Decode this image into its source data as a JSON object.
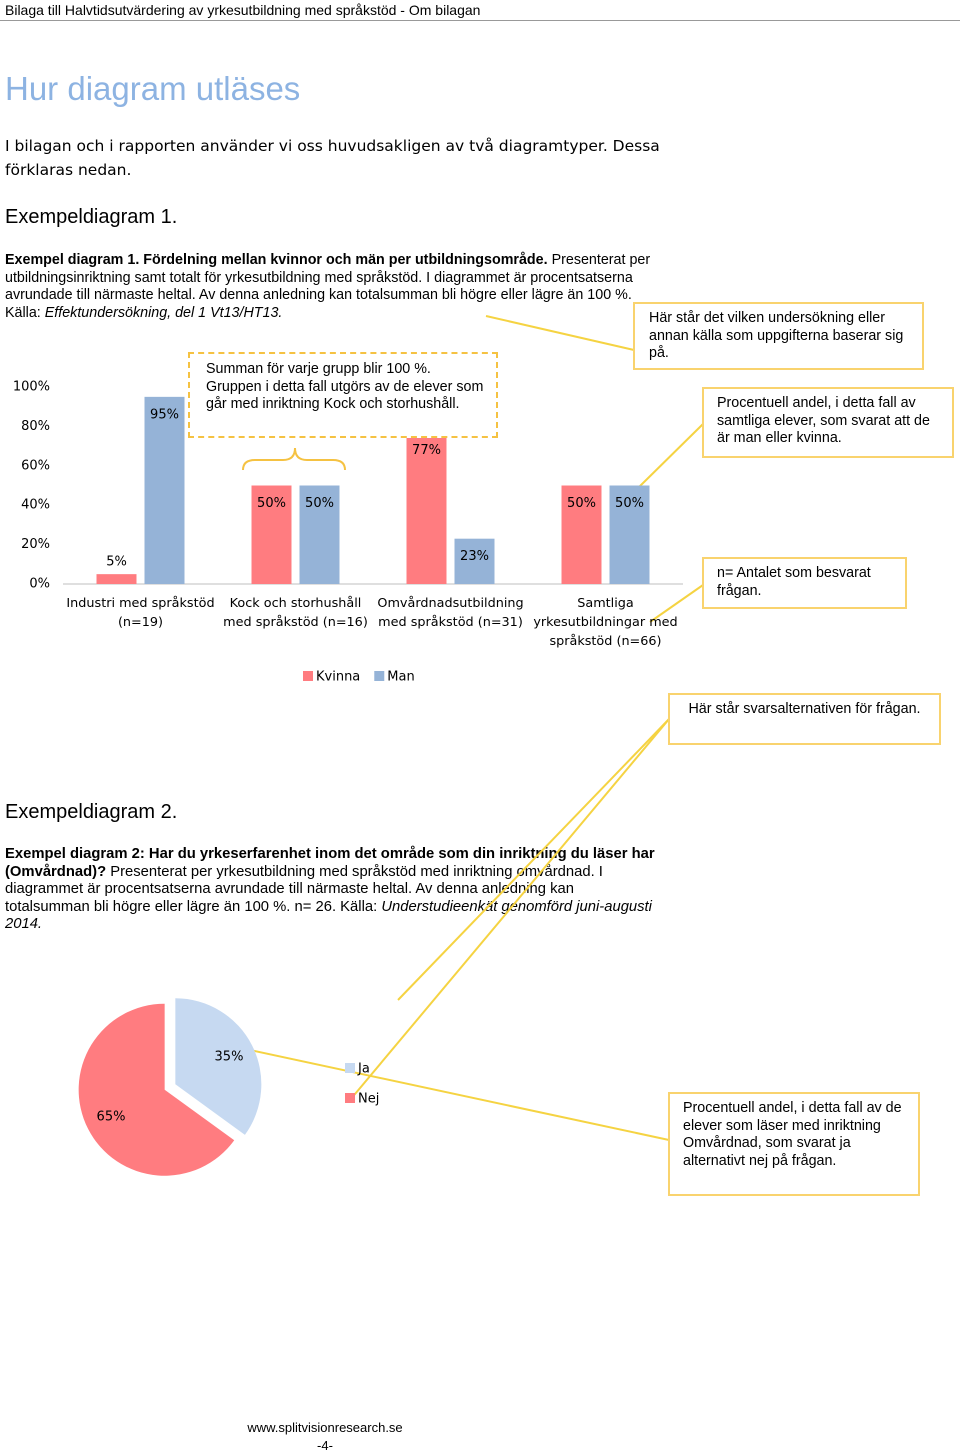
{
  "header": "Bilaga till Halvtidsutvärdering av yrkesutbildning med språkstöd - Om bilagan",
  "title": "Hur diagram utläses",
  "intro": "I bilagan och i rapporten använder vi oss huvudsakligen av två diagramtyper. Dessa förklaras nedan.",
  "examples": [
    {
      "heading": "Exempeldiagram 1.",
      "caption_bold": "Exempel diagram 1. Fördelning mellan kvinnor och män per utbildningsområde.",
      "caption_text": "Presenterat per utbildningsinriktning samt totalt för yrkesutbildning med språkstöd. I diagrammet är procentsatserna avrundade till närmaste heltal. Av denna anledning kan totalsumman bli högre eller lägre än 100 %. Källa:",
      "caption_italic": "Effektundersökning, del 1 Vt13/HT13."
    },
    {
      "heading": "Exempeldiagram 2.",
      "caption_bold": "Exempel diagram 2: Har du yrkeserfarenhet inom det område som din inriktning du läser har (Omvårdnad)?",
      "caption_text": "Presenterat per yrkesutbildning med språkstöd med inriktning omvårdnad. I diagrammet är procentsatserna avrundade till närmaste heltal. Av denna anledning kan totalsumman bli högre eller lägre än 100 %. n= 26. Källa:",
      "caption_italic": "Understudieenkät genomförd juni-augusti 2014."
    }
  ],
  "callouts": [
    "Summan för varje grupp blir 100 %. Gruppen i detta fall utgörs av de elever som går med inriktning Kock och storhushåll.",
    "Här står det vilken undersökning eller annan källa som uppgifterna baserar sig på.",
    "Procentuell andel, i detta fall av samtliga elever, som svarat att de är man eller kvinna.",
    "n= Antalet som besvarat frågan.",
    "Här står svarsalternativen för frågan.",
    "Procentuell andel, i detta fall av de elever som läser med inriktning Omvårdnad, som svarat ja alternativt nej på frågan."
  ],
  "footer": {
    "url": "www.splitvisionresearch.se",
    "page": "-4-"
  },
  "chart_data": [
    {
      "type": "bar",
      "categories": [
        "Industri med språkstöd (n=19)",
        "Kock och storhushåll med språkstöd (n=16)",
        "Omvårdnadsutbildning med språkstöd (n=31)",
        "Samtliga yrkesutbildningar med språkstöd (n=66)"
      ],
      "series": [
        {
          "name": "Kvinna",
          "color": "#ff7c80",
          "values": [
            5,
            50,
            77,
            50
          ],
          "value_labels": [
            "5%",
            "50%",
            "77%",
            "50%"
          ]
        },
        {
          "name": "Man",
          "color": "#95b3d7",
          "values": [
            95,
            50,
            23,
            50
          ],
          "value_labels": [
            "95%",
            "50%",
            "23%",
            "50%"
          ]
        }
      ],
      "ylim": [
        0,
        100
      ],
      "yticks": [
        {
          "value": 0,
          "label": "0%"
        },
        {
          "value": 20,
          "label": "20%"
        },
        {
          "value": 40,
          "label": "40%"
        },
        {
          "value": 60,
          "label": "60%"
        },
        {
          "value": 80,
          "label": "80%"
        },
        {
          "value": 100,
          "label": "100%"
        }
      ],
      "grid": false,
      "legend": "bottom"
    },
    {
      "type": "pie",
      "categories": [
        "Ja",
        "Nej"
      ],
      "values": [
        35,
        65
      ],
      "value_labels": [
        "35%",
        "65%"
      ],
      "colors": [
        "#c6d9f1",
        "#ff7c80"
      ],
      "legend": "right"
    }
  ]
}
